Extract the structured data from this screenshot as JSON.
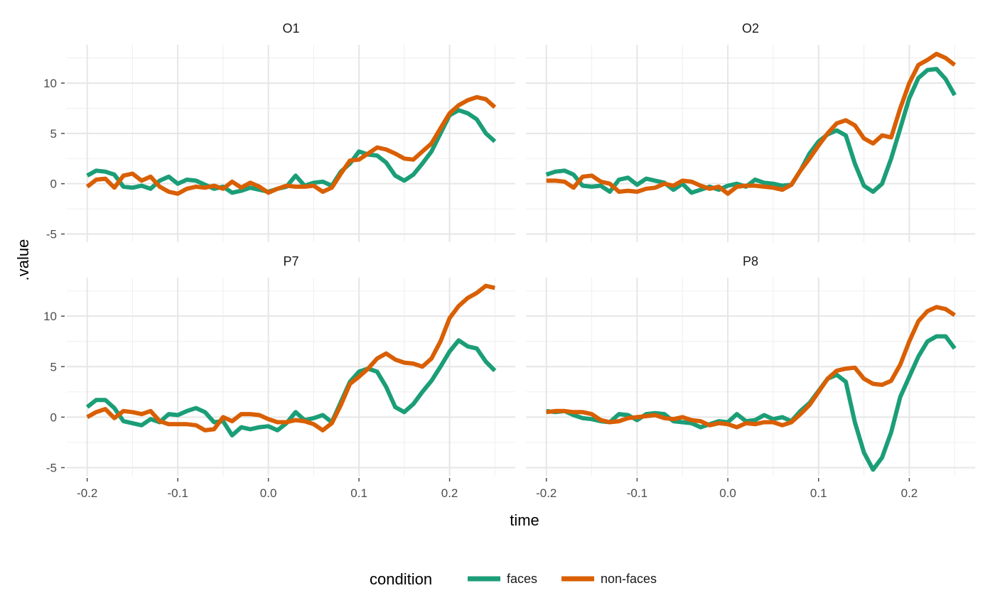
{
  "chart_data": {
    "type": "line",
    "xlabel": "time",
    "ylabel": ".value",
    "xlim": [
      -0.2,
      0.25
    ],
    "ylim": [
      -5,
      13
    ],
    "x_ticks": [
      -0.2,
      -0.1,
      0.0,
      0.1,
      0.2
    ],
    "x_tick_labels": [
      "-0.2",
      "-0.1",
      "0.0",
      "0.1",
      "0.2"
    ],
    "y_ticks": [
      -5,
      0,
      5,
      10
    ],
    "y_tick_labels": [
      "-5",
      "0",
      "5",
      "10"
    ],
    "grid": true,
    "legend": {
      "title": "condition",
      "placement": "bottom",
      "entries": [
        {
          "name": "faces",
          "color": "#1b9e77"
        },
        {
          "name": "non-faces",
          "color": "#d95f02"
        }
      ]
    },
    "panels": [
      {
        "label": "O1",
        "series": [
          {
            "name": "faces",
            "color": "#1b9e77",
            "x": [
              -0.2,
              -0.19,
              -0.18,
              -0.17,
              -0.16,
              -0.15,
              -0.14,
              -0.13,
              -0.12,
              -0.11,
              -0.1,
              -0.09,
              -0.08,
              -0.07,
              -0.06,
              -0.05,
              -0.04,
              -0.03,
              -0.02,
              -0.01,
              0.0,
              0.01,
              0.02,
              0.03,
              0.04,
              0.05,
              0.06,
              0.07,
              0.08,
              0.09,
              0.1,
              0.11,
              0.12,
              0.13,
              0.14,
              0.15,
              0.16,
              0.17,
              0.18,
              0.19,
              0.2,
              0.21,
              0.22,
              0.23,
              0.24,
              0.25
            ],
            "y": [
              0.8,
              1.3,
              1.2,
              0.9,
              -0.3,
              -0.4,
              -0.2,
              -0.5,
              0.3,
              0.7,
              0.0,
              0.4,
              0.3,
              -0.1,
              -0.5,
              -0.3,
              -0.9,
              -0.7,
              -0.4,
              -0.6,
              -0.8,
              -0.5,
              -0.3,
              0.8,
              -0.2,
              0.1,
              0.2,
              -0.2,
              1.2,
              2.0,
              3.2,
              2.9,
              2.8,
              2.1,
              0.8,
              0.3,
              0.9,
              2.0,
              3.2,
              5.0,
              6.8,
              7.3,
              7.0,
              6.4,
              5.0,
              4.2
            ]
          },
          {
            "name": "non-faces",
            "color": "#d95f02",
            "x": [
              -0.2,
              -0.19,
              -0.18,
              -0.17,
              -0.16,
              -0.15,
              -0.14,
              -0.13,
              -0.12,
              -0.11,
              -0.1,
              -0.09,
              -0.08,
              -0.07,
              -0.06,
              -0.05,
              -0.04,
              -0.03,
              -0.02,
              -0.01,
              0.0,
              0.01,
              0.02,
              0.03,
              0.04,
              0.05,
              0.06,
              0.07,
              0.08,
              0.09,
              0.1,
              0.11,
              0.12,
              0.13,
              0.14,
              0.15,
              0.16,
              0.17,
              0.18,
              0.19,
              0.2,
              0.21,
              0.22,
              0.23,
              0.24,
              0.25
            ],
            "y": [
              -0.3,
              0.4,
              0.5,
              -0.4,
              0.8,
              1.0,
              0.3,
              0.7,
              -0.3,
              -0.8,
              -1.0,
              -0.5,
              -0.3,
              -0.4,
              -0.2,
              -0.5,
              0.2,
              -0.4,
              0.1,
              -0.3,
              -0.9,
              -0.5,
              -0.2,
              -0.3,
              -0.3,
              -0.2,
              -0.8,
              -0.4,
              1.0,
              2.3,
              2.4,
              3.0,
              3.6,
              3.4,
              3.0,
              2.5,
              2.4,
              3.2,
              4.0,
              5.5,
              7.0,
              7.8,
              8.3,
              8.6,
              8.4,
              7.6
            ]
          }
        ]
      },
      {
        "label": "O2",
        "series": [
          {
            "name": "faces",
            "color": "#1b9e77",
            "x": [
              -0.2,
              -0.19,
              -0.18,
              -0.17,
              -0.16,
              -0.15,
              -0.14,
              -0.13,
              -0.12,
              -0.11,
              -0.1,
              -0.09,
              -0.08,
              -0.07,
              -0.06,
              -0.05,
              -0.04,
              -0.03,
              -0.02,
              -0.01,
              0.0,
              0.01,
              0.02,
              0.03,
              0.04,
              0.05,
              0.06,
              0.07,
              0.08,
              0.09,
              0.1,
              0.11,
              0.12,
              0.13,
              0.14,
              0.15,
              0.16,
              0.17,
              0.18,
              0.19,
              0.2,
              0.21,
              0.22,
              0.23,
              0.24,
              0.25
            ],
            "y": [
              0.9,
              1.2,
              1.3,
              0.9,
              -0.2,
              -0.3,
              -0.2,
              -0.8,
              0.4,
              0.6,
              -0.1,
              0.5,
              0.3,
              0.1,
              -0.6,
              0.0,
              -0.9,
              -0.6,
              -0.3,
              -0.6,
              -0.2,
              0.0,
              -0.3,
              0.4,
              0.1,
              0.0,
              -0.2,
              -0.1,
              1.3,
              3.0,
              4.2,
              4.9,
              5.3,
              4.8,
              2.0,
              -0.2,
              -0.8,
              0.0,
              2.5,
              5.5,
              8.5,
              10.5,
              11.3,
              11.4,
              10.4,
              8.8
            ]
          },
          {
            "name": "non-faces",
            "color": "#d95f02",
            "x": [
              -0.2,
              -0.19,
              -0.18,
              -0.17,
              -0.16,
              -0.15,
              -0.14,
              -0.13,
              -0.12,
              -0.11,
              -0.1,
              -0.09,
              -0.08,
              -0.07,
              -0.06,
              -0.05,
              -0.04,
              -0.03,
              -0.02,
              -0.01,
              0.0,
              0.01,
              0.02,
              0.03,
              0.04,
              0.05,
              0.06,
              0.07,
              0.08,
              0.09,
              0.1,
              0.11,
              0.12,
              0.13,
              0.14,
              0.15,
              0.16,
              0.17,
              0.18,
              0.19,
              0.2,
              0.21,
              0.22,
              0.23,
              0.24,
              0.25
            ],
            "y": [
              0.3,
              0.3,
              0.2,
              -0.4,
              0.7,
              0.8,
              0.2,
              0.0,
              -0.8,
              -0.7,
              -0.8,
              -0.5,
              -0.4,
              0.0,
              -0.2,
              0.3,
              0.2,
              -0.2,
              -0.5,
              -0.3,
              -1.0,
              -0.3,
              -0.2,
              -0.2,
              -0.3,
              -0.4,
              -0.6,
              -0.1,
              1.3,
              2.5,
              3.8,
              5.0,
              6.0,
              6.3,
              5.8,
              4.5,
              4.0,
              4.8,
              4.6,
              7.5,
              10.0,
              11.8,
              12.3,
              12.9,
              12.5,
              11.8
            ]
          }
        ]
      },
      {
        "label": "P7",
        "series": [
          {
            "name": "faces",
            "color": "#1b9e77",
            "x": [
              -0.2,
              -0.19,
              -0.18,
              -0.17,
              -0.16,
              -0.15,
              -0.14,
              -0.13,
              -0.12,
              -0.11,
              -0.1,
              -0.09,
              -0.08,
              -0.07,
              -0.06,
              -0.05,
              -0.04,
              -0.03,
              -0.02,
              -0.01,
              0.0,
              0.01,
              0.02,
              0.03,
              0.04,
              0.05,
              0.06,
              0.07,
              0.08,
              0.09,
              0.1,
              0.11,
              0.12,
              0.13,
              0.14,
              0.15,
              0.16,
              0.17,
              0.18,
              0.19,
              0.2,
              0.21,
              0.22,
              0.23,
              0.24,
              0.25
            ],
            "y": [
              1.0,
              1.7,
              1.7,
              0.9,
              -0.4,
              -0.6,
              -0.8,
              -0.2,
              -0.5,
              0.3,
              0.2,
              0.6,
              0.9,
              0.5,
              -0.5,
              -0.4,
              -1.8,
              -1.0,
              -1.2,
              -1.0,
              -0.9,
              -1.3,
              -0.6,
              0.5,
              -0.3,
              -0.1,
              0.2,
              -0.5,
              1.5,
              3.5,
              4.5,
              4.8,
              4.5,
              3.0,
              1.0,
              0.5,
              1.3,
              2.5,
              3.6,
              5.0,
              6.5,
              7.6,
              7.0,
              6.8,
              5.5,
              4.6
            ]
          },
          {
            "name": "non-faces",
            "color": "#d95f02",
            "x": [
              -0.2,
              -0.19,
              -0.18,
              -0.17,
              -0.16,
              -0.15,
              -0.14,
              -0.13,
              -0.12,
              -0.11,
              -0.1,
              -0.09,
              -0.08,
              -0.07,
              -0.06,
              -0.05,
              -0.04,
              -0.03,
              -0.02,
              -0.01,
              0.0,
              0.01,
              0.02,
              0.03,
              0.04,
              0.05,
              0.06,
              0.07,
              0.08,
              0.09,
              0.1,
              0.11,
              0.12,
              0.13,
              0.14,
              0.15,
              0.16,
              0.17,
              0.18,
              0.19,
              0.2,
              0.21,
              0.22,
              0.23,
              0.24,
              0.25
            ],
            "y": [
              0.0,
              0.5,
              0.8,
              -0.1,
              0.6,
              0.5,
              0.3,
              0.6,
              -0.4,
              -0.7,
              -0.7,
              -0.7,
              -0.8,
              -1.3,
              -1.2,
              0.0,
              -0.4,
              0.3,
              0.3,
              0.2,
              -0.2,
              -0.5,
              -0.5,
              -0.3,
              -0.4,
              -0.7,
              -1.3,
              -0.6,
              1.2,
              3.3,
              4.0,
              4.8,
              5.8,
              6.3,
              5.7,
              5.4,
              5.3,
              5.0,
              5.8,
              7.5,
              9.8,
              11.0,
              11.8,
              12.3,
              13.0,
              12.8
            ]
          }
        ]
      },
      {
        "label": "P8",
        "series": [
          {
            "name": "faces",
            "color": "#1b9e77",
            "x": [
              -0.2,
              -0.19,
              -0.18,
              -0.17,
              -0.16,
              -0.15,
              -0.14,
              -0.13,
              -0.12,
              -0.11,
              -0.1,
              -0.09,
              -0.08,
              -0.07,
              -0.06,
              -0.05,
              -0.04,
              -0.03,
              -0.02,
              -0.01,
              0.0,
              0.01,
              0.02,
              0.03,
              0.04,
              0.05,
              0.06,
              0.07,
              0.08,
              0.09,
              0.1,
              0.11,
              0.12,
              0.13,
              0.14,
              0.15,
              0.16,
              0.17,
              0.18,
              0.19,
              0.2,
              0.21,
              0.22,
              0.23,
              0.24,
              0.25
            ],
            "y": [
              0.6,
              0.5,
              0.6,
              0.2,
              -0.1,
              -0.2,
              -0.4,
              -0.5,
              0.3,
              0.2,
              -0.3,
              0.3,
              0.4,
              0.3,
              -0.4,
              -0.5,
              -0.6,
              -1.0,
              -0.7,
              -0.4,
              -0.5,
              0.3,
              -0.4,
              -0.3,
              0.2,
              -0.2,
              0.0,
              -0.4,
              0.6,
              1.4,
              2.6,
              3.8,
              4.2,
              3.5,
              -0.5,
              -3.5,
              -5.2,
              -4.0,
              -1.5,
              2.0,
              4.0,
              6.0,
              7.5,
              8.0,
              8.0,
              6.8
            ]
          },
          {
            "name": "non-faces",
            "color": "#d95f02",
            "x": [
              -0.2,
              -0.19,
              -0.18,
              -0.17,
              -0.16,
              -0.15,
              -0.14,
              -0.13,
              -0.12,
              -0.11,
              -0.1,
              -0.09,
              -0.08,
              -0.07,
              -0.06,
              -0.05,
              -0.04,
              -0.03,
              -0.02,
              -0.01,
              0.0,
              0.01,
              0.02,
              0.03,
              0.04,
              0.05,
              0.06,
              0.07,
              0.08,
              0.09,
              0.1,
              0.11,
              0.12,
              0.13,
              0.14,
              0.15,
              0.16,
              0.17,
              0.18,
              0.19,
              0.2,
              0.21,
              0.22,
              0.23,
              0.24,
              0.25
            ],
            "y": [
              0.5,
              0.6,
              0.6,
              0.5,
              0.5,
              0.3,
              -0.3,
              -0.5,
              -0.4,
              -0.1,
              0.0,
              0.1,
              0.2,
              -0.1,
              -0.2,
              0.0,
              -0.3,
              -0.4,
              -0.8,
              -0.6,
              -0.7,
              -1.0,
              -0.6,
              -0.7,
              -0.5,
              -0.5,
              -0.8,
              -0.5,
              0.3,
              1.2,
              2.5,
              3.8,
              4.6,
              4.8,
              4.9,
              3.8,
              3.3,
              3.2,
              3.6,
              5.2,
              7.5,
              9.5,
              10.5,
              10.9,
              10.7,
              10.1
            ]
          }
        ]
      }
    ]
  }
}
